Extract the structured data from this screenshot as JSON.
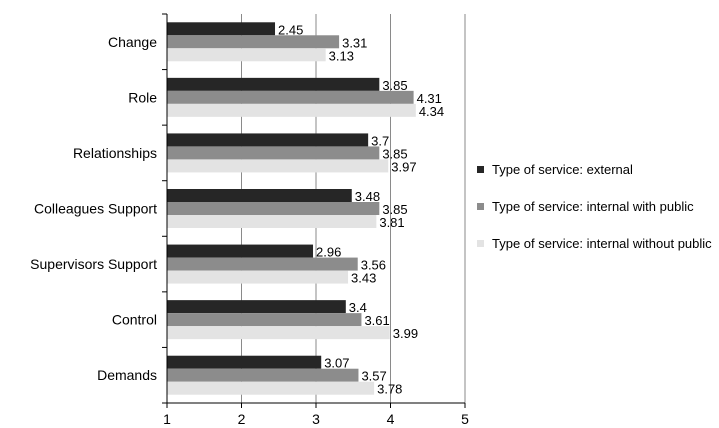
{
  "chart_data": {
    "type": "bar",
    "orientation": "horizontal",
    "categories": [
      "Change",
      "Role",
      "Relationships",
      "Colleagues Support",
      "Supervisors Support",
      "Control",
      "Demands"
    ],
    "series": [
      {
        "name": "Type of service: external",
        "color": "#262626",
        "values": [
          2.45,
          3.85,
          3.7,
          3.48,
          2.96,
          3.4,
          3.07
        ]
      },
      {
        "name": "Type of service: internal with public",
        "color": "#8c8c8c",
        "values": [
          3.31,
          4.31,
          3.85,
          3.85,
          3.56,
          3.61,
          3.57
        ]
      },
      {
        "name": "Type of service: internal without public",
        "color": "#e3e3e3",
        "values": [
          3.13,
          4.34,
          3.97,
          3.81,
          3.43,
          3.99,
          3.78
        ]
      }
    ],
    "value_labels": [
      [
        "2.45",
        "3.85",
        "3.7",
        "3.48",
        "2.96",
        "3.4",
        "3.07"
      ],
      [
        "3.31",
        "4.31",
        "3.85",
        "3.85",
        "3.56",
        "3.61",
        "3.57"
      ],
      [
        "3.13",
        "4.34",
        "3.97",
        "3.81",
        "3.43",
        "3.99",
        "3.78"
      ]
    ],
    "xlim": [
      1,
      5
    ],
    "xticks": [
      "1",
      "2",
      "3",
      "4",
      "5"
    ],
    "grid": "vertical",
    "legend_position": "right"
  }
}
